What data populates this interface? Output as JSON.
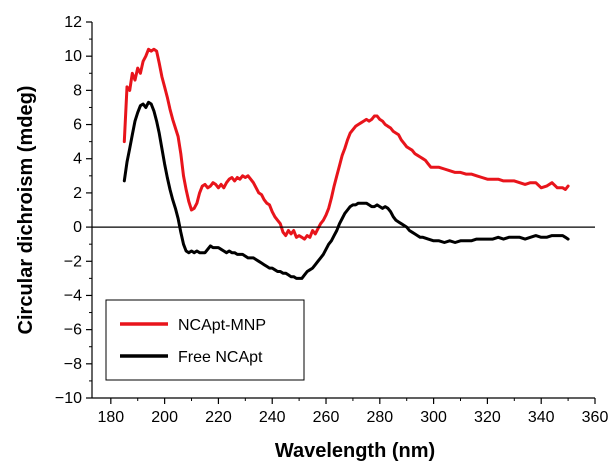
{
  "chart_data": {
    "type": "line",
    "title": "",
    "xlabel": "Wavelength (nm)",
    "ylabel": "Circular dichroism (mdeg)",
    "xlim": [
      173,
      360
    ],
    "ylim": [
      -10,
      12
    ],
    "xticks": [
      180,
      200,
      220,
      240,
      260,
      280,
      300,
      320,
      340,
      360
    ],
    "yticks": [
      -10,
      -8,
      -6,
      -4,
      -2,
      0,
      2,
      4,
      6,
      8,
      10,
      12
    ],
    "x_tick_labels": [
      "180",
      "200",
      "220",
      "240",
      "260",
      "280",
      "300",
      "320",
      "340",
      "360"
    ],
    "y_tick_labels": [
      "−10",
      "−8",
      "−6",
      "−4",
      "−2",
      "0",
      "2",
      "4",
      "6",
      "8",
      "10",
      "12"
    ],
    "grid": false,
    "zero_line": true,
    "legend_position": "bottom-left",
    "series": [
      {
        "name": "NCApt-MNP",
        "color": "#e8141b",
        "points": [
          [
            185,
            5.0
          ],
          [
            186,
            8.2
          ],
          [
            187,
            8.0
          ],
          [
            188,
            9.0
          ],
          [
            189,
            8.6
          ],
          [
            190,
            9.3
          ],
          [
            191,
            9.0
          ],
          [
            192,
            9.7
          ],
          [
            193,
            10.0
          ],
          [
            194,
            10.4
          ],
          [
            195,
            10.3
          ],
          [
            196,
            10.4
          ],
          [
            197,
            10.3
          ],
          [
            198,
            9.6
          ],
          [
            199,
            8.8
          ],
          [
            200,
            8.2
          ],
          [
            201,
            7.6
          ],
          [
            202,
            6.9
          ],
          [
            203,
            6.3
          ],
          [
            204,
            5.8
          ],
          [
            205,
            5.3
          ],
          [
            206,
            4.3
          ],
          [
            207,
            3.0
          ],
          [
            208,
            2.2
          ],
          [
            209,
            1.5
          ],
          [
            210,
            1.0
          ],
          [
            211,
            1.1
          ],
          [
            212,
            1.4
          ],
          [
            213,
            2.0
          ],
          [
            214,
            2.4
          ],
          [
            215,
            2.5
          ],
          [
            216,
            2.3
          ],
          [
            217,
            2.4
          ],
          [
            218,
            2.6
          ],
          [
            219,
            2.5
          ],
          [
            220,
            2.3
          ],
          [
            221,
            2.5
          ],
          [
            222,
            2.3
          ],
          [
            223,
            2.6
          ],
          [
            224,
            2.8
          ],
          [
            225,
            2.9
          ],
          [
            226,
            2.7
          ],
          [
            227,
            2.9
          ],
          [
            228,
            2.8
          ],
          [
            229,
            3.0
          ],
          [
            230,
            2.9
          ],
          [
            231,
            3.0
          ],
          [
            232,
            2.8
          ],
          [
            233,
            2.6
          ],
          [
            234,
            2.3
          ],
          [
            235,
            2.0
          ],
          [
            236,
            1.9
          ],
          [
            237,
            1.6
          ],
          [
            238,
            1.4
          ],
          [
            239,
            1.3
          ],
          [
            240,
            0.9
          ],
          [
            241,
            0.6
          ],
          [
            242,
            0.4
          ],
          [
            243,
            0.2
          ],
          [
            244,
            -0.3
          ],
          [
            245,
            -0.5
          ],
          [
            246,
            -0.2
          ],
          [
            247,
            -0.4
          ],
          [
            248,
            -0.2
          ],
          [
            249,
            -0.6
          ],
          [
            250,
            -0.5
          ],
          [
            251,
            -0.6
          ],
          [
            252,
            -0.7
          ],
          [
            253,
            -0.5
          ],
          [
            254,
            -0.6
          ],
          [
            255,
            -0.2
          ],
          [
            256,
            -0.4
          ],
          [
            257,
            -0.1
          ],
          [
            258,
            0.2
          ],
          [
            259,
            0.4
          ],
          [
            260,
            0.7
          ],
          [
            261,
            1.1
          ],
          [
            262,
            1.7
          ],
          [
            263,
            2.4
          ],
          [
            264,
            3.0
          ],
          [
            265,
            3.6
          ],
          [
            266,
            4.2
          ],
          [
            267,
            4.6
          ],
          [
            268,
            5.1
          ],
          [
            269,
            5.5
          ],
          [
            270,
            5.7
          ],
          [
            271,
            5.9
          ],
          [
            272,
            6.0
          ],
          [
            273,
            6.1
          ],
          [
            274,
            6.2
          ],
          [
            275,
            6.3
          ],
          [
            276,
            6.2
          ],
          [
            277,
            6.3
          ],
          [
            278,
            6.5
          ],
          [
            279,
            6.5
          ],
          [
            280,
            6.3
          ],
          [
            281,
            6.2
          ],
          [
            282,
            6.0
          ],
          [
            283,
            5.9
          ],
          [
            284,
            5.8
          ],
          [
            285,
            5.6
          ],
          [
            286,
            5.5
          ],
          [
            287,
            5.4
          ],
          [
            288,
            5.1
          ],
          [
            289,
            4.9
          ],
          [
            290,
            4.7
          ],
          [
            291,
            4.6
          ],
          [
            292,
            4.5
          ],
          [
            293,
            4.3
          ],
          [
            294,
            4.2
          ],
          [
            295,
            4.1
          ],
          [
            296,
            4.0
          ],
          [
            297,
            3.9
          ],
          [
            298,
            3.7
          ],
          [
            299,
            3.5
          ],
          [
            300,
            3.5
          ],
          [
            302,
            3.5
          ],
          [
            304,
            3.4
          ],
          [
            306,
            3.3
          ],
          [
            308,
            3.2
          ],
          [
            310,
            3.2
          ],
          [
            312,
            3.1
          ],
          [
            314,
            3.1
          ],
          [
            316,
            3.0
          ],
          [
            318,
            2.9
          ],
          [
            320,
            2.8
          ],
          [
            322,
            2.8
          ],
          [
            324,
            2.8
          ],
          [
            326,
            2.7
          ],
          [
            328,
            2.7
          ],
          [
            330,
            2.7
          ],
          [
            332,
            2.6
          ],
          [
            334,
            2.5
          ],
          [
            336,
            2.6
          ],
          [
            338,
            2.6
          ],
          [
            340,
            2.3
          ],
          [
            342,
            2.4
          ],
          [
            344,
            2.6
          ],
          [
            346,
            2.3
          ],
          [
            348,
            2.3
          ],
          [
            349,
            2.2
          ],
          [
            350,
            2.4
          ]
        ]
      },
      {
        "name": "Free NCApt",
        "color": "#000000",
        "points": [
          [
            185,
            2.7
          ],
          [
            186,
            3.8
          ],
          [
            187,
            4.6
          ],
          [
            188,
            5.4
          ],
          [
            189,
            6.2
          ],
          [
            190,
            6.7
          ],
          [
            191,
            7.1
          ],
          [
            192,
            7.2
          ],
          [
            193,
            7.0
          ],
          [
            194,
            7.3
          ],
          [
            195,
            7.2
          ],
          [
            196,
            6.8
          ],
          [
            197,
            6.2
          ],
          [
            198,
            5.5
          ],
          [
            199,
            4.6
          ],
          [
            200,
            3.7
          ],
          [
            201,
            2.9
          ],
          [
            202,
            2.2
          ],
          [
            203,
            1.6
          ],
          [
            204,
            1.1
          ],
          [
            205,
            0.5
          ],
          [
            206,
            -0.3
          ],
          [
            207,
            -1.0
          ],
          [
            208,
            -1.4
          ],
          [
            209,
            -1.5
          ],
          [
            210,
            -1.4
          ],
          [
            211,
            -1.5
          ],
          [
            212,
            -1.4
          ],
          [
            213,
            -1.5
          ],
          [
            214,
            -1.5
          ],
          [
            215,
            -1.5
          ],
          [
            216,
            -1.3
          ],
          [
            217,
            -1.1
          ],
          [
            218,
            -1.2
          ],
          [
            219,
            -1.2
          ],
          [
            220,
            -1.2
          ],
          [
            221,
            -1.3
          ],
          [
            222,
            -1.4
          ],
          [
            223,
            -1.5
          ],
          [
            224,
            -1.4
          ],
          [
            225,
            -1.5
          ],
          [
            226,
            -1.5
          ],
          [
            227,
            -1.6
          ],
          [
            228,
            -1.6
          ],
          [
            229,
            -1.6
          ],
          [
            230,
            -1.7
          ],
          [
            231,
            -1.8
          ],
          [
            232,
            -1.8
          ],
          [
            233,
            -1.8
          ],
          [
            234,
            -1.9
          ],
          [
            235,
            -2.0
          ],
          [
            236,
            -2.1
          ],
          [
            237,
            -2.2
          ],
          [
            238,
            -2.3
          ],
          [
            239,
            -2.4
          ],
          [
            240,
            -2.4
          ],
          [
            241,
            -2.5
          ],
          [
            242,
            -2.6
          ],
          [
            243,
            -2.6
          ],
          [
            244,
            -2.7
          ],
          [
            245,
            -2.7
          ],
          [
            246,
            -2.8
          ],
          [
            247,
            -2.9
          ],
          [
            248,
            -2.9
          ],
          [
            249,
            -3.0
          ],
          [
            250,
            -3.0
          ],
          [
            251,
            -3.0
          ],
          [
            252,
            -2.8
          ],
          [
            253,
            -2.6
          ],
          [
            254,
            -2.5
          ],
          [
            255,
            -2.4
          ],
          [
            256,
            -2.2
          ],
          [
            257,
            -2.0
          ],
          [
            258,
            -1.8
          ],
          [
            259,
            -1.6
          ],
          [
            260,
            -1.3
          ],
          [
            261,
            -1.0
          ],
          [
            262,
            -0.8
          ],
          [
            263,
            -0.5
          ],
          [
            264,
            -0.2
          ],
          [
            265,
            0.2
          ],
          [
            266,
            0.5
          ],
          [
            267,
            0.8
          ],
          [
            268,
            1.0
          ],
          [
            269,
            1.2
          ],
          [
            270,
            1.3
          ],
          [
            271,
            1.3
          ],
          [
            272,
            1.4
          ],
          [
            273,
            1.4
          ],
          [
            274,
            1.4
          ],
          [
            275,
            1.4
          ],
          [
            276,
            1.3
          ],
          [
            277,
            1.2
          ],
          [
            278,
            1.2
          ],
          [
            279,
            1.3
          ],
          [
            280,
            1.2
          ],
          [
            281,
            1.1
          ],
          [
            282,
            1.2
          ],
          [
            283,
            1.1
          ],
          [
            284,
            0.9
          ],
          [
            285,
            0.6
          ],
          [
            286,
            0.4
          ],
          [
            287,
            0.3
          ],
          [
            288,
            0.2
          ],
          [
            289,
            0.1
          ],
          [
            290,
            0.0
          ],
          [
            291,
            -0.2
          ],
          [
            292,
            -0.3
          ],
          [
            293,
            -0.4
          ],
          [
            294,
            -0.5
          ],
          [
            295,
            -0.6
          ],
          [
            296,
            -0.6
          ],
          [
            298,
            -0.7
          ],
          [
            300,
            -0.8
          ],
          [
            302,
            -0.8
          ],
          [
            304,
            -0.9
          ],
          [
            306,
            -0.8
          ],
          [
            308,
            -0.9
          ],
          [
            310,
            -0.8
          ],
          [
            312,
            -0.8
          ],
          [
            314,
            -0.8
          ],
          [
            316,
            -0.7
          ],
          [
            318,
            -0.7
          ],
          [
            320,
            -0.7
          ],
          [
            322,
            -0.7
          ],
          [
            324,
            -0.6
          ],
          [
            326,
            -0.7
          ],
          [
            328,
            -0.6
          ],
          [
            330,
            -0.6
          ],
          [
            332,
            -0.6
          ],
          [
            334,
            -0.7
          ],
          [
            336,
            -0.6
          ],
          [
            338,
            -0.5
          ],
          [
            340,
            -0.6
          ],
          [
            342,
            -0.6
          ],
          [
            344,
            -0.5
          ],
          [
            346,
            -0.5
          ],
          [
            348,
            -0.5
          ],
          [
            349,
            -0.6
          ],
          [
            350,
            -0.7
          ]
        ]
      }
    ]
  }
}
